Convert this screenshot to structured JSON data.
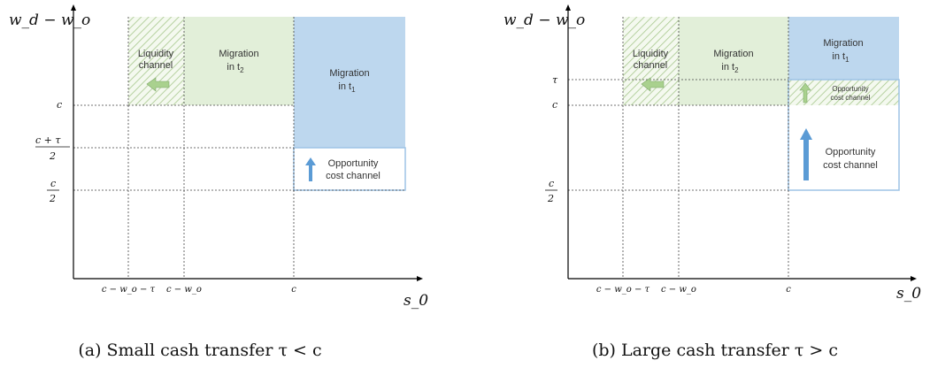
{
  "panel_a": {
    "y_axis_label": "w_d − w_o",
    "x_axis_label": "s_0",
    "y_ticks": {
      "c": "c",
      "c_plus_tau_num": "c + τ",
      "c_plus_tau_den": "2",
      "c_half_num": "c",
      "c_half_den": "2"
    },
    "x_ticks": {
      "t1": "c − w_o − τ",
      "t2": "c − w_o",
      "t3": "c"
    },
    "regions": {
      "liquidity": {
        "line1": "Liquidity",
        "line2": "channel"
      },
      "migration_t2": {
        "line1": "Migration",
        "line2": "in t",
        "sub": "2"
      },
      "migration_t1": {
        "line1": "Migration",
        "line2": "in t",
        "sub": "1"
      },
      "opportunity": {
        "line1": "Opportunity",
        "line2": "cost channel"
      }
    },
    "caption": "(a) Small cash transfer τ < c"
  },
  "panel_b": {
    "y_axis_label": "w_d − w_o",
    "x_axis_label": "s_0",
    "y_ticks": {
      "tau": "τ",
      "c": "c",
      "c_half_num": "c",
      "c_half_den": "2"
    },
    "x_ticks": {
      "t1": "c − w_o − τ",
      "t2": "c − w_o",
      "t3": "c"
    },
    "regions": {
      "liquidity": {
        "line1": "Liquidity",
        "line2": "channel"
      },
      "migration_t2": {
        "line1": "Migration",
        "line2": "in t",
        "sub": "2"
      },
      "migration_t1": {
        "line1": "Migration",
        "line2": "in t",
        "sub": "1"
      },
      "opportunity_small": {
        "line1": "Opportunity",
        "line2": "cost channel"
      },
      "opportunity_big": {
        "line1": "Opportunity",
        "line2": "cost channel"
      }
    },
    "caption": "(b) Large cash transfer τ > c"
  },
  "colors": {
    "green_fill": "#e2efd9",
    "blue_fill": "#bdd7ee",
    "hatch": "#a9c98f",
    "green_arrow": "#a9d18e",
    "blue_arrow": "#5b9bd5",
    "box_border": "#9dc3e6"
  }
}
